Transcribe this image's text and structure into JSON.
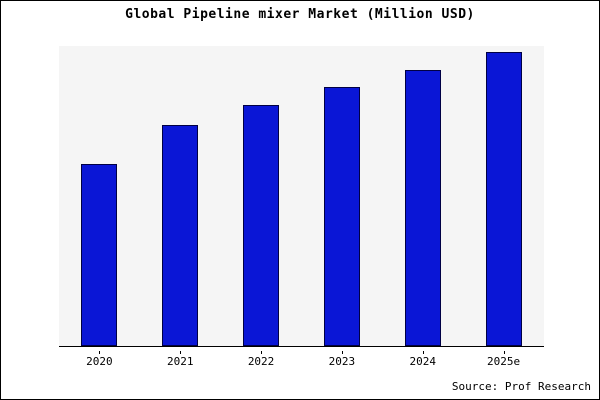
{
  "chart_data": {
    "type": "bar",
    "title": "Global Pipeline mixer Market (Million USD)",
    "categories": [
      "2020",
      "2021",
      "2022",
      "2023",
      "2024",
      "2025e"
    ],
    "values": [
      62,
      75,
      82,
      88,
      94,
      100
    ],
    "xlabel": "",
    "ylabel": "",
    "ylim": [
      0,
      102
    ],
    "grid": false,
    "legend_position": "none",
    "bar_color": "#0a16d6",
    "bar_border_color": "#000044",
    "plot_background": "#f5f5f5"
  },
  "source_note": "Source: Prof Research"
}
